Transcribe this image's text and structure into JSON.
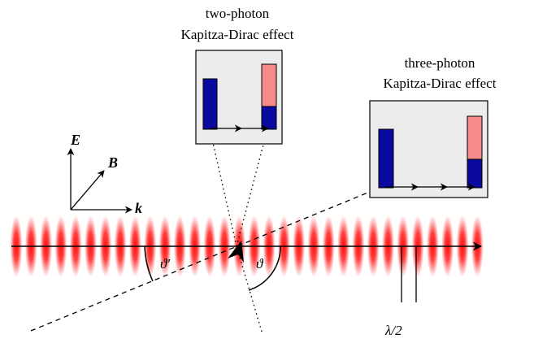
{
  "panels": {
    "two_photon": {
      "title_line1": "two-photon",
      "title_line2": "Kapitza-Dirac effect"
    },
    "three_photon": {
      "title_line1": "three-photon",
      "title_line2": "Kapitza-Dirac effect"
    }
  },
  "axes": {
    "e_label": "E",
    "b_label": "B",
    "k_label": "k"
  },
  "angles": {
    "theta_prime": "ϑ′",
    "theta": "ϑ"
  },
  "wavelength_label": "λ/2",
  "colors": {
    "laser_red": "#ff0000",
    "bar_blue": "#0a0aa0",
    "bar_pink": "#f48a8a",
    "panel_fill": "#ececec"
  }
}
